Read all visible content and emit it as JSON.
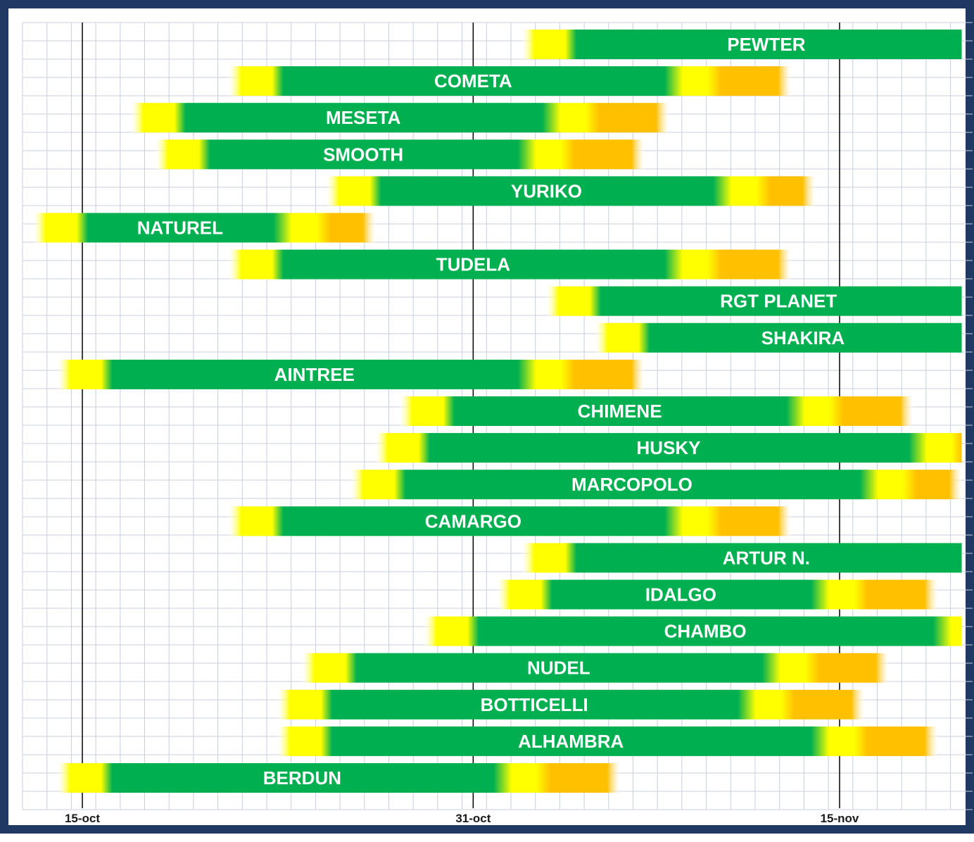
{
  "chart_data": {
    "type": "gantt",
    "x_axis": {
      "type": "date",
      "range": [
        "2024-10-13",
        "2024-11-20"
      ],
      "ticks": [
        {
          "date": "2024-10-15",
          "label": "15-oct"
        },
        {
          "date": "2024-10-31",
          "label": "31-oct"
        },
        {
          "date": "2024-11-15",
          "label": "15-nov"
        }
      ]
    },
    "grid": true,
    "colors": {
      "frame": "#1f3864",
      "grid": "#c9cde0",
      "green": "#00b050",
      "yellow": "#ffff00",
      "orange": "#ffc000",
      "tick_line": "#000000"
    },
    "series": [
      {
        "name": "PEWTER",
        "start": "2024-11-02",
        "green_from": "2024-11-04",
        "green_to": "2024-11-20",
        "end": "2024-11-20"
      },
      {
        "name": "COMETA",
        "start": "2024-10-21",
        "green_from": "2024-10-23",
        "green_to": "2024-11-08",
        "end": "2024-11-13"
      },
      {
        "name": "MESETA",
        "start": "2024-10-17",
        "green_from": "2024-10-19",
        "green_to": "2024-11-03",
        "end": "2024-11-08"
      },
      {
        "name": "SMOOTH",
        "start": "2024-10-18",
        "green_from": "2024-10-20",
        "green_to": "2024-11-02",
        "end": "2024-11-07"
      },
      {
        "name": "YURIKO",
        "start": "2024-10-25",
        "green_from": "2024-10-27",
        "green_to": "2024-11-10",
        "end": "2024-11-14"
      },
      {
        "name": "NATUREL",
        "start": "2024-10-13",
        "green_from": "2024-10-15",
        "green_to": "2024-10-23",
        "end": "2024-10-27"
      },
      {
        "name": "TUDELA",
        "start": "2024-10-21",
        "green_from": "2024-10-23",
        "green_to": "2024-11-08",
        "end": "2024-11-13"
      },
      {
        "name": "RGT PLANET",
        "start": "2024-11-03",
        "green_from": "2024-11-05",
        "green_to": "2024-11-20",
        "end": "2024-11-20"
      },
      {
        "name": "SHAKIRA",
        "start": "2024-11-05",
        "green_from": "2024-11-07",
        "green_to": "2024-11-20",
        "end": "2024-11-20"
      },
      {
        "name": "AINTREE",
        "start": "2024-10-14",
        "green_from": "2024-10-16",
        "green_to": "2024-11-02",
        "end": "2024-11-07"
      },
      {
        "name": "CHIMENE",
        "start": "2024-10-28",
        "green_from": "2024-10-30",
        "green_to": "2024-11-13",
        "end": "2024-11-18"
      },
      {
        "name": "HUSKY",
        "start": "2024-10-27",
        "green_from": "2024-10-29",
        "green_to": "2024-11-18",
        "end": "2024-11-20"
      },
      {
        "name": "MARCOPOLO",
        "start": "2024-10-26",
        "green_from": "2024-10-28",
        "green_to": "2024-11-16",
        "end": "2024-11-20"
      },
      {
        "name": "CAMARGO",
        "start": "2024-10-21",
        "green_from": "2024-10-23",
        "green_to": "2024-11-08",
        "end": "2024-11-13"
      },
      {
        "name": "ARTUR N.",
        "start": "2024-11-02",
        "green_from": "2024-11-04",
        "green_to": "2024-11-20",
        "end": "2024-11-20"
      },
      {
        "name": "IDALGO",
        "start": "2024-11-01",
        "green_from": "2024-11-03",
        "green_to": "2024-11-14",
        "end": "2024-11-19"
      },
      {
        "name": "CHAMBO",
        "start": "2024-10-29",
        "green_from": "2024-10-31",
        "green_to": "2024-11-19",
        "end": "2024-11-20"
      },
      {
        "name": "NUDEL",
        "start": "2024-10-24",
        "green_from": "2024-10-26",
        "green_to": "2024-11-12",
        "end": "2024-11-17"
      },
      {
        "name": "BOTTICELLI",
        "start": "2024-10-23",
        "green_from": "2024-10-25",
        "green_to": "2024-11-11",
        "end": "2024-11-16"
      },
      {
        "name": "ALHAMBRA",
        "start": "2024-10-23",
        "green_from": "2024-10-25",
        "green_to": "2024-11-14",
        "end": "2024-11-19"
      },
      {
        "name": "BERDUN",
        "start": "2024-10-14",
        "green_from": "2024-10-16",
        "green_to": "2024-11-01",
        "end": "2024-11-06"
      }
    ]
  }
}
